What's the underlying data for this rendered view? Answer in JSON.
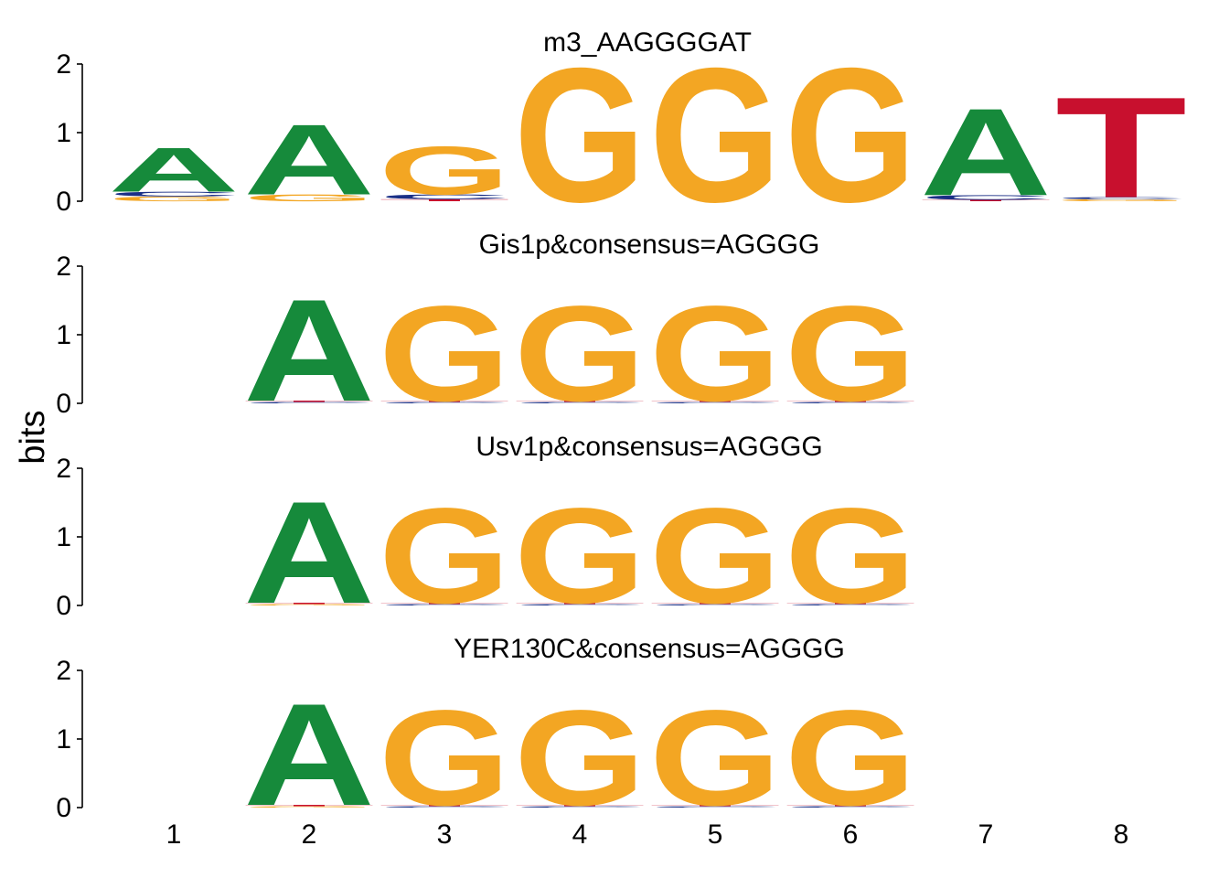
{
  "figure": {
    "ylabel": "bits",
    "x_tick_labels": [
      "1",
      "2",
      "3",
      "4",
      "5",
      "6",
      "7",
      "8"
    ]
  },
  "colors": {
    "A": "#168a3b",
    "C": "#1a2f86",
    "G": "#f3a623",
    "T": "#c8102e",
    "axis": "#000000"
  },
  "chart_data": [
    {
      "type": "sequence-logo",
      "title": "m3_AAGGGGAT",
      "ylim": [
        0,
        2
      ],
      "yticks": [
        "0",
        "1",
        "2"
      ],
      "positions": [
        1,
        2,
        3,
        4,
        5,
        6,
        7,
        8
      ],
      "stacks": [
        [
          [
            "G",
            0.07
          ],
          [
            "C",
            0.07
          ],
          [
            "A",
            0.66
          ]
        ],
        [
          [
            "G",
            0.1
          ],
          [
            "A",
            1.05
          ]
        ],
        [
          [
            "T",
            0.03
          ],
          [
            "C",
            0.07
          ],
          [
            "G",
            0.72
          ]
        ],
        [
          [
            "G",
            2.0
          ]
        ],
        [
          [
            "G",
            2.0
          ]
        ],
        [
          [
            "G",
            2.0
          ]
        ],
        [
          [
            "T",
            0.02
          ],
          [
            "C",
            0.07
          ],
          [
            "A",
            1.3
          ]
        ],
        [
          [
            "G",
            0.03
          ],
          [
            "C",
            0.03
          ],
          [
            "T",
            1.5
          ]
        ]
      ]
    },
    {
      "type": "sequence-logo",
      "title": "Gis1p&consensus=AGGGG",
      "ylim": [
        0,
        2
      ],
      "yticks": [
        "0",
        "1",
        "2"
      ],
      "positions": [
        2,
        3,
        4,
        5,
        6
      ],
      "stacks": [
        [
          [
            "C",
            0.02
          ],
          [
            "T",
            0.02
          ],
          [
            "A",
            1.52
          ]
        ],
        [
          [
            "C",
            0.02
          ],
          [
            "T",
            0.02
          ],
          [
            "G",
            1.42
          ]
        ],
        [
          [
            "C",
            0.02
          ],
          [
            "T",
            0.02
          ],
          [
            "G",
            1.42
          ]
        ],
        [
          [
            "C",
            0.02
          ],
          [
            "T",
            0.02
          ],
          [
            "G",
            1.42
          ]
        ],
        [
          [
            "C",
            0.02
          ],
          [
            "T",
            0.02
          ],
          [
            "G",
            1.42
          ]
        ]
      ]
    },
    {
      "type": "sequence-logo",
      "title": "Usv1p&consensus=AGGGG",
      "ylim": [
        0,
        2
      ],
      "yticks": [
        "0",
        "1",
        "2"
      ],
      "positions": [
        2,
        3,
        4,
        5,
        6
      ],
      "stacks": [
        [
          [
            "G",
            0.02
          ],
          [
            "T",
            0.02
          ],
          [
            "A",
            1.52
          ]
        ],
        [
          [
            "C",
            0.02
          ],
          [
            "T",
            0.02
          ],
          [
            "G",
            1.42
          ]
        ],
        [
          [
            "C",
            0.02
          ],
          [
            "T",
            0.02
          ],
          [
            "G",
            1.42
          ]
        ],
        [
          [
            "C",
            0.02
          ],
          [
            "T",
            0.02
          ],
          [
            "G",
            1.42
          ]
        ],
        [
          [
            "C",
            0.02
          ],
          [
            "T",
            0.02
          ],
          [
            "G",
            1.42
          ]
        ]
      ]
    },
    {
      "type": "sequence-logo",
      "title": "YER130C&consensus=AGGGG",
      "ylim": [
        0,
        2
      ],
      "yticks": [
        "0",
        "1",
        "2"
      ],
      "positions": [
        2,
        3,
        4,
        5,
        6
      ],
      "stacks": [
        [
          [
            "G",
            0.02
          ],
          [
            "T",
            0.02
          ],
          [
            "A",
            1.52
          ]
        ],
        [
          [
            "C",
            0.02
          ],
          [
            "T",
            0.02
          ],
          [
            "G",
            1.42
          ]
        ],
        [
          [
            "C",
            0.02
          ],
          [
            "T",
            0.02
          ],
          [
            "G",
            1.42
          ]
        ],
        [
          [
            "C",
            0.02
          ],
          [
            "T",
            0.02
          ],
          [
            "G",
            1.42
          ]
        ],
        [
          [
            "C",
            0.02
          ],
          [
            "T",
            0.02
          ],
          [
            "G",
            1.42
          ]
        ]
      ]
    }
  ]
}
